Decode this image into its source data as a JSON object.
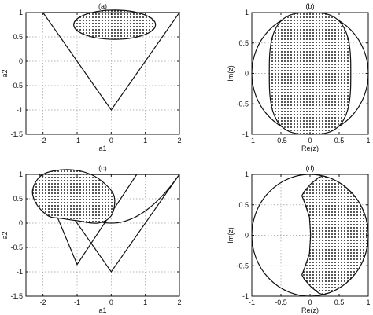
{
  "chart_data": [
    {
      "id": "a",
      "type": "line",
      "title": "(a)",
      "xlabel": "a1",
      "ylabel": "a2",
      "xlim": [
        -2.5,
        2
      ],
      "ylim": [
        -1.5,
        1
      ],
      "xticks": [
        -2,
        -1,
        0,
        1,
        2
      ],
      "yticks": [
        -1.5,
        -1,
        -0.5,
        0,
        0.5,
        1
      ],
      "grid": true,
      "series": [
        {
          "kind": "polygon",
          "points": [
            [
              -2,
              1
            ],
            [
              2,
              1
            ],
            [
              0,
              -1
            ]
          ]
        },
        {
          "kind": "shaded-ellipse",
          "center": [
            0.1,
            0.75
          ],
          "rx": 1.2,
          "ry": 0.3
        }
      ]
    },
    {
      "id": "b",
      "type": "line",
      "title": "(b)",
      "xlabel": "Re(z)",
      "ylabel": "Im(z)",
      "xlim": [
        -1,
        1
      ],
      "ylim": [
        -1,
        1
      ],
      "xticks": [
        -1,
        -0.5,
        0,
        0.5,
        1
      ],
      "yticks": [
        -1,
        -0.5,
        0,
        0.5,
        1
      ],
      "grid": true,
      "series": [
        {
          "kind": "circle",
          "center": [
            0,
            0
          ],
          "r": 1
        },
        {
          "kind": "shaded-superellipse",
          "center": [
            0,
            0
          ],
          "rx": 0.7,
          "ry": 1,
          "p": 3
        }
      ]
    },
    {
      "id": "c",
      "type": "line",
      "title": "(c)",
      "xlabel": "a1",
      "ylabel": "a2",
      "xlim": [
        -2.5,
        2
      ],
      "ylim": [
        -1.5,
        1
      ],
      "xticks": [
        -2,
        -1,
        0,
        1,
        2
      ],
      "yticks": [
        -1.5,
        -1,
        -0.5,
        0,
        0.5,
        1
      ],
      "grid": true,
      "series": [
        {
          "kind": "polygon",
          "points": [
            [
              -2,
              1
            ],
            [
              2,
              1
            ],
            [
              0,
              -1
            ]
          ]
        },
        {
          "kind": "polygon",
          "points": [
            [
              -2.1,
              1
            ],
            [
              -1,
              -0.85
            ],
            [
              0.75,
              1
            ]
          ]
        },
        {
          "kind": "parabola",
          "vertex": [
            0,
            0
          ],
          "a": 0.25,
          "x_range": [
            -2,
            2
          ]
        },
        {
          "kind": "shaded-blob",
          "points": [
            [
              -2.3,
              0.7
            ],
            [
              -2.0,
              1.0
            ],
            [
              -1.3,
              1.1
            ],
            [
              -0.6,
              1.0
            ],
            [
              -0.1,
              0.75
            ],
            [
              0.1,
              0.5
            ],
            [
              0.0,
              0.15
            ],
            [
              -0.4,
              0.0
            ],
            [
              -1.0,
              0.05
            ],
            [
              -1.5,
              0.1
            ],
            [
              -1.85,
              0.15
            ],
            [
              -2.2,
              0.4
            ]
          ]
        }
      ]
    },
    {
      "id": "d",
      "type": "line",
      "title": "(d)",
      "xlabel": "Re(z)",
      "ylabel": "Im(z)",
      "xlim": [
        -1,
        1
      ],
      "ylim": [
        -1,
        1
      ],
      "xticks": [
        -1,
        -0.5,
        0,
        0.5,
        1
      ],
      "yticks": [
        -1,
        -0.5,
        0,
        0.5,
        1
      ],
      "grid": true,
      "series": [
        {
          "kind": "circle",
          "center": [
            0,
            0
          ],
          "r": 1
        },
        {
          "kind": "shaded-crescent",
          "outer_arc": {
            "center": [
              0,
              0
            ],
            "r": 1,
            "from_deg": 77,
            "to_deg": -77
          },
          "inner_points": [
            [
              0.22,
              -0.975
            ],
            [
              0.15,
              -0.95
            ],
            [
              0.02,
              -0.85
            ],
            [
              -0.1,
              -0.72
            ],
            [
              -0.14,
              -0.65
            ],
            [
              -0.08,
              -0.5
            ],
            [
              -0.01,
              -0.3
            ],
            [
              0.01,
              0
            ],
            [
              -0.01,
              0.3
            ],
            [
              -0.08,
              0.5
            ],
            [
              -0.14,
              0.65
            ],
            [
              -0.1,
              0.72
            ],
            [
              0.02,
              0.85
            ],
            [
              0.15,
              0.95
            ],
            [
              0.22,
              0.975
            ]
          ]
        }
      ]
    }
  ]
}
